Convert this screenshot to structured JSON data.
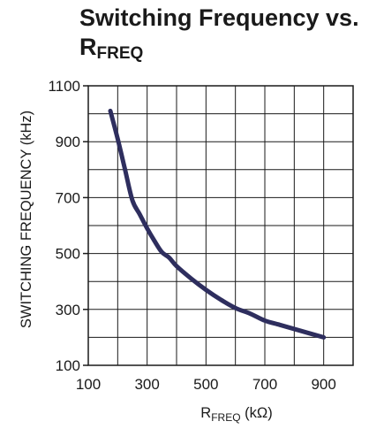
{
  "chart_data": {
    "type": "line",
    "title_main": "Switching Frequency vs.",
    "title_r": "R",
    "title_sub": "FREQ",
    "xlabel_r": "R",
    "xlabel_sub": "FREQ",
    "xlabel_unit": " (kΩ)",
    "ylabel": "SWITCHING FREQUENCY (kHz)",
    "xlim": [
      100,
      1000
    ],
    "ylim": [
      100,
      1100
    ],
    "x_ticks": [
      100,
      300,
      500,
      700,
      900
    ],
    "x_tick_labels": [
      "100",
      "300",
      "500",
      "700",
      "900"
    ],
    "y_ticks": [
      100,
      300,
      500,
      700,
      900,
      1100
    ],
    "y_tick_labels": [
      "100",
      "300",
      "500",
      "700",
      "900",
      "1100"
    ],
    "grid": true,
    "line_color": "#2e2e5e",
    "series": [
      {
        "x": [
          175,
          200,
          225,
          250,
          275,
          300,
          325,
          350,
          375,
          400,
          450,
          500,
          550,
          600,
          650,
          700,
          750,
          800,
          850,
          900
        ],
        "y": [
          1010,
          910,
          800,
          690,
          640,
          590,
          545,
          505,
          485,
          455,
          410,
          370,
          335,
          305,
          285,
          260,
          245,
          230,
          215,
          200
        ]
      }
    ]
  }
}
